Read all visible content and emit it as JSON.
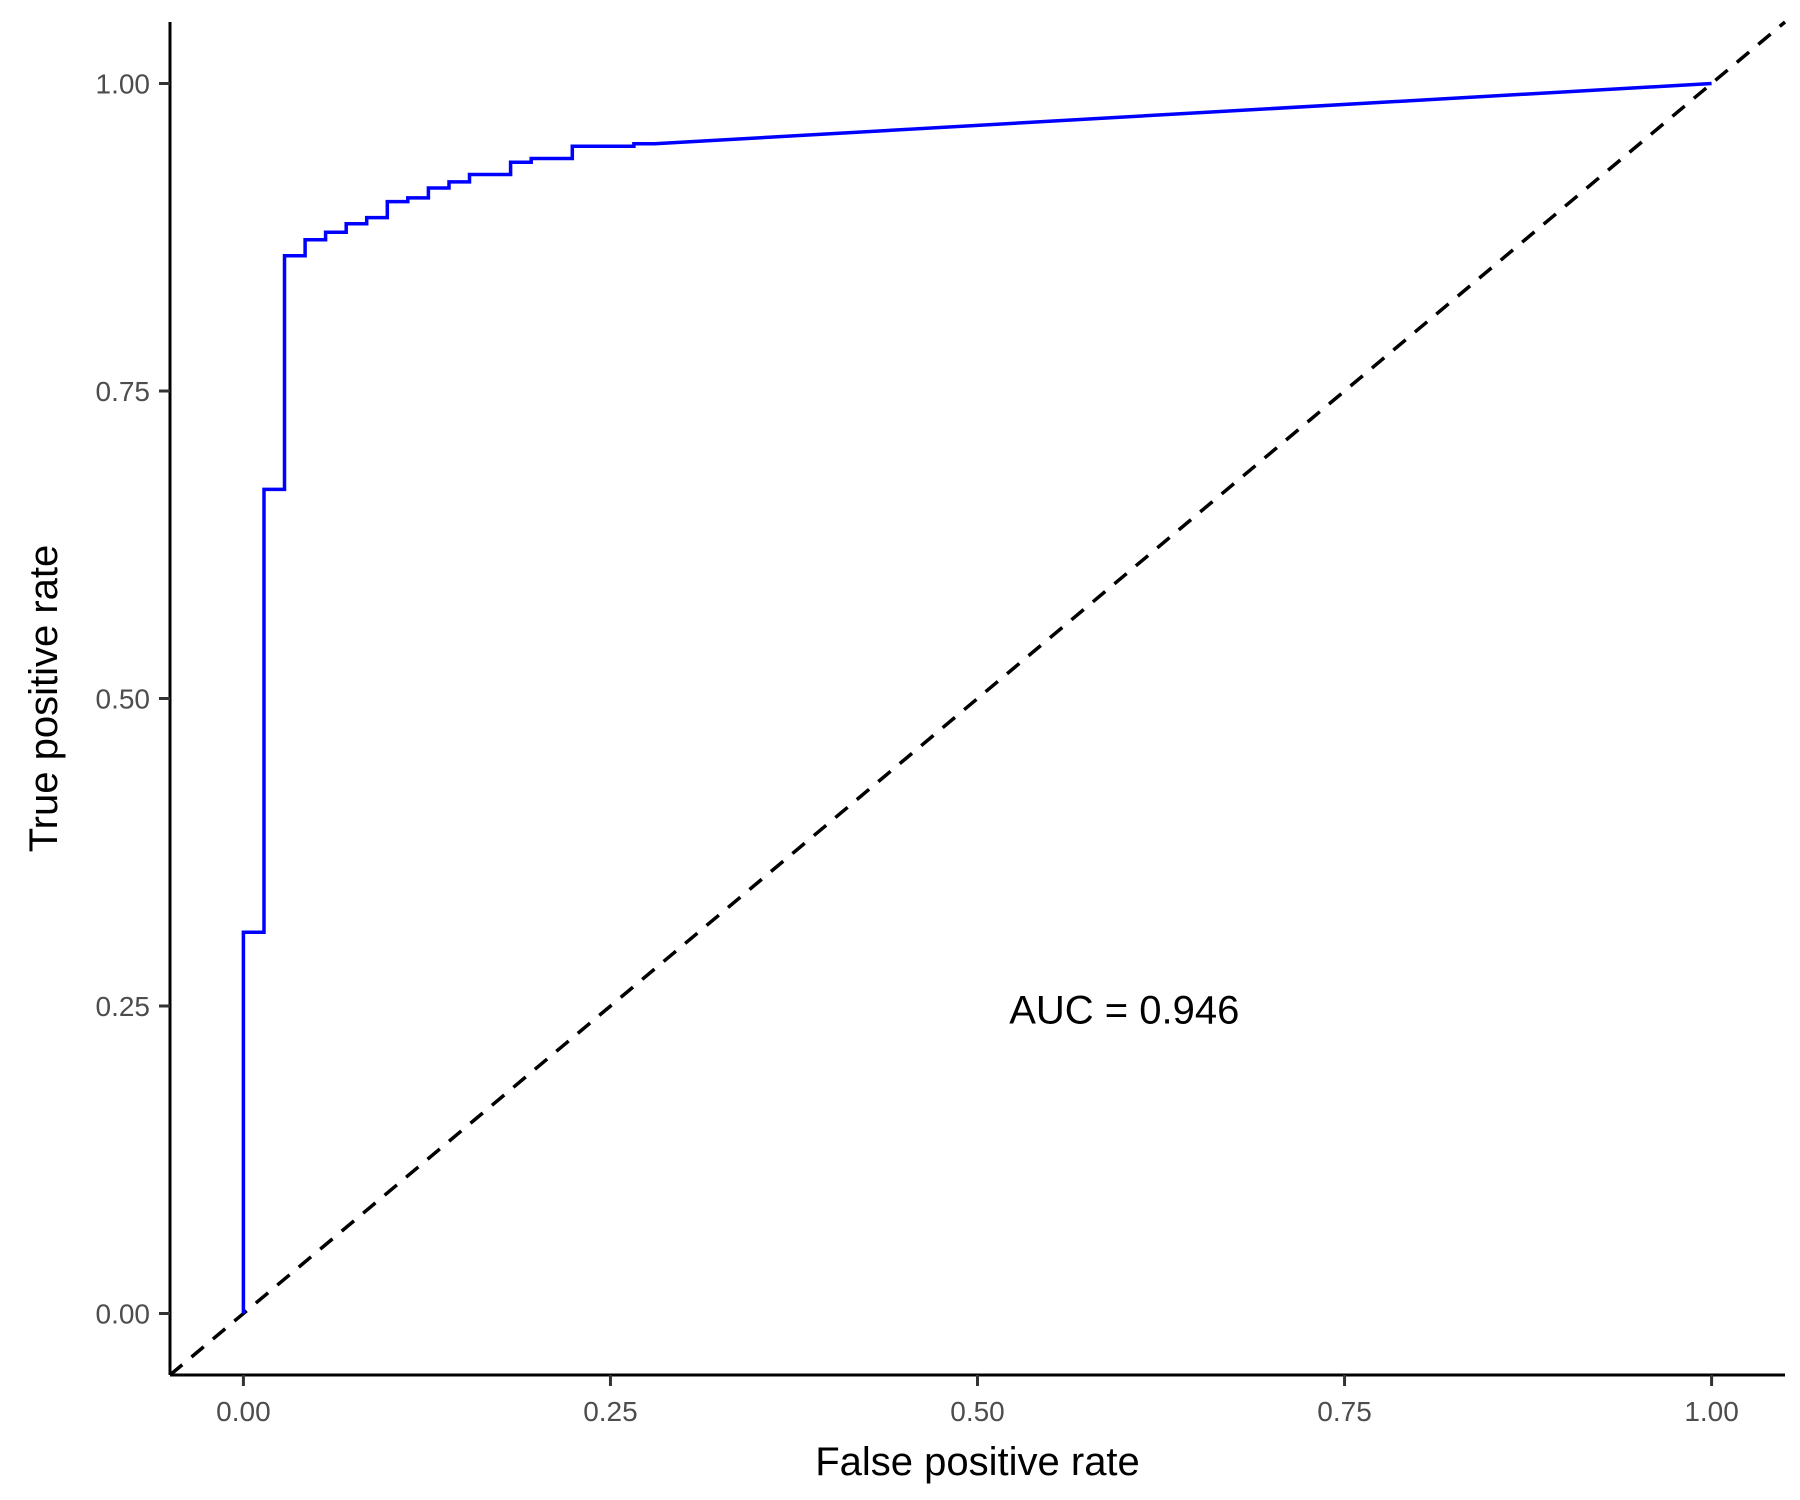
{
  "chart_data": {
    "type": "line",
    "xlabel": "False positive rate",
    "ylabel": "True positive rate",
    "xlim": [
      -0.05,
      1.05
    ],
    "ylim": [
      -0.05,
      1.05
    ],
    "x_ticks": [
      0,
      0.25,
      0.5,
      0.75,
      1
    ],
    "x_tick_labels": [
      "0.00",
      "0.25",
      "0.50",
      "0.75",
      "1.00"
    ],
    "y_ticks": [
      0,
      0.25,
      0.5,
      0.75,
      1
    ],
    "y_tick_labels": [
      "0.00",
      "0.25",
      "0.50",
      "0.75",
      "1.00"
    ],
    "grid": false,
    "annotation": {
      "text": "AUC = 0.946",
      "x": 0.6,
      "y": 0.247
    },
    "colors": {
      "roc": "#0000ff",
      "reference": "#000000"
    },
    "series": [
      {
        "style": "solid",
        "x": [
          0,
          0,
          0.014,
          0.014,
          0.028,
          0.028,
          0.042,
          0.042,
          0.056,
          0.056,
          0.07,
          0.07,
          0.084,
          0.084,
          0.098,
          0.098,
          0.112,
          0.112,
          0.126,
          0.126,
          0.14,
          0.14,
          0.154,
          0.154,
          0.182,
          0.182,
          0.196,
          0.196,
          0.224,
          0.224,
          0.266,
          0.266,
          0.28,
          1.0
        ],
        "y": [
          0,
          0.31,
          0.31,
          0.67,
          0.67,
          0.86,
          0.86,
          0.873,
          0.873,
          0.879,
          0.879,
          0.886,
          0.886,
          0.891,
          0.891,
          0.904,
          0.904,
          0.907,
          0.907,
          0.915,
          0.915,
          0.92,
          0.92,
          0.926,
          0.926,
          0.936,
          0.936,
          0.939,
          0.939,
          0.949,
          0.949,
          0.951,
          0.951,
          1.0
        ]
      },
      {
        "style": "dashed",
        "x": [
          -0.05,
          1.05
        ],
        "y": [
          -0.05,
          1.05
        ]
      }
    ]
  }
}
